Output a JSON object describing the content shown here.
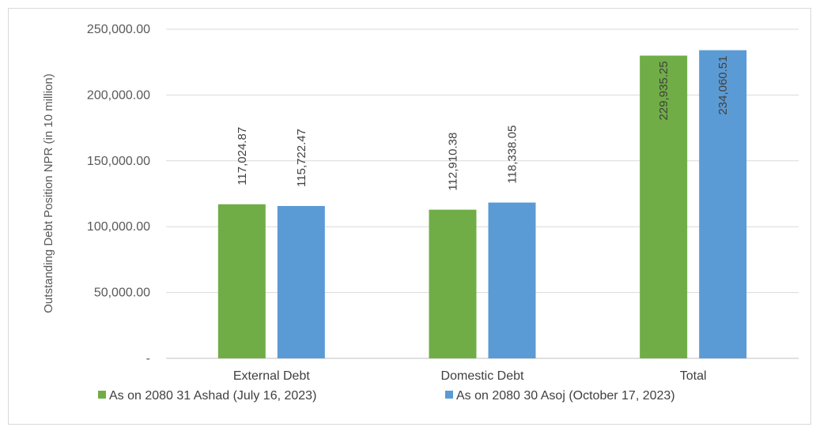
{
  "chart_data": {
    "type": "bar",
    "ylabel": "Outstanding  Debt Position NPR (in 10 million)",
    "ylim": [
      0,
      250000
    ],
    "yticks": [
      0,
      50000,
      100000,
      150000,
      200000,
      250000
    ],
    "ytick_labels": [
      "-",
      "50,000.00",
      "100,000.00",
      "150,000.00",
      "200,000.00",
      "250,000.00"
    ],
    "categories": [
      "External Debt",
      "Domestic Debt",
      "Total"
    ],
    "grid": "horizontal",
    "legend_position": "bottom",
    "series": [
      {
        "name": "As on 2080 31 Ashad (July 16, 2023)",
        "color": "#70ad47",
        "values": [
          117024.87,
          112910.38,
          229935.25
        ],
        "labels": [
          "117,024.87",
          "112,910.38",
          "229,935.25"
        ]
      },
      {
        "name": "As on 2080 30 Asoj (October 17, 2023)",
        "color": "#5b9bd5",
        "values": [
          115722.47,
          118338.05,
          234060.51
        ],
        "labels": [
          "115,722.47",
          "118,338.05",
          "234,060.51"
        ]
      }
    ]
  }
}
